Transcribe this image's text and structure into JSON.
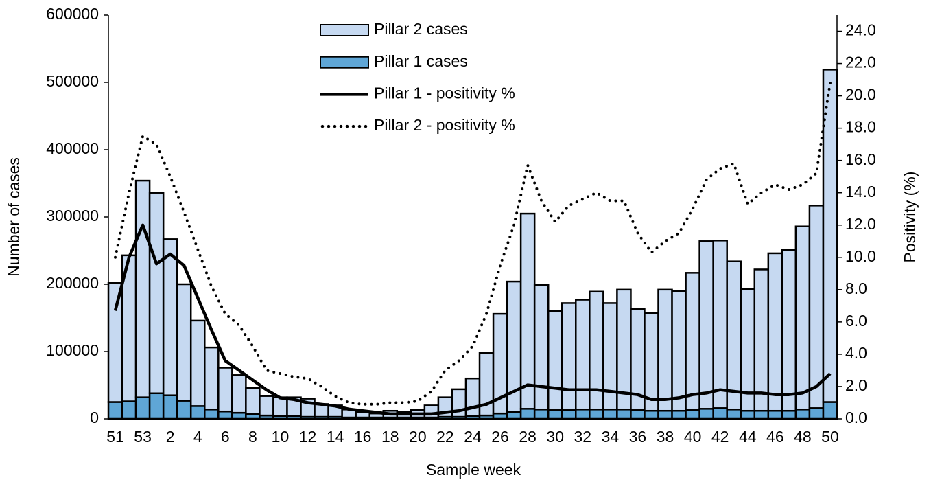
{
  "chart_data": {
    "type": "bar",
    "x_label": "Sample week",
    "y_label": "Number of cases",
    "y2_label": "Positivity (%)",
    "legend": "top",
    "categories": [
      "51",
      null,
      "53",
      null,
      "2",
      null,
      "4",
      null,
      "6",
      null,
      "8",
      null,
      "10",
      null,
      "12",
      null,
      "14",
      null,
      "16",
      null,
      "18",
      null,
      "20",
      null,
      "22",
      null,
      "24",
      null,
      "26",
      null,
      "28",
      null,
      "30",
      null,
      "32",
      null,
      "34",
      null,
      "36",
      null,
      "38",
      null,
      "40",
      null,
      "42",
      null,
      "44",
      null,
      "46",
      null,
      "48",
      null,
      "50"
    ],
    "ylim": [
      0,
      600000
    ],
    "yticks": [
      0,
      100000,
      200000,
      300000,
      400000,
      500000,
      600000
    ],
    "y2lim": [
      0,
      25
    ],
    "y2ticks": [
      {
        "value": 0,
        "label": "0.0"
      },
      {
        "value": 2,
        "label": "2.0"
      },
      {
        "value": 4,
        "label": "4.0"
      },
      {
        "value": 6,
        "label": "6.0"
      },
      {
        "value": 8,
        "label": "8.0"
      },
      {
        "value": 10,
        "label": "10.0"
      },
      {
        "value": 12,
        "label": "12.0"
      },
      {
        "value": 14,
        "label": "14.0"
      },
      {
        "value": 16,
        "label": "16.0"
      },
      {
        "value": 18,
        "label": "18.0"
      },
      {
        "value": 20,
        "label": "20.0"
      },
      {
        "value": 22,
        "label": "22.0"
      },
      {
        "value": 24,
        "label": "24.0"
      }
    ],
    "series": [
      {
        "name": "Pillar 2 cases",
        "type": "bar",
        "color": "#c6d9f1",
        "values": [
          177000,
          217000,
          322000,
          298000,
          232000,
          173000,
          127000,
          92000,
          65000,
          56000,
          39000,
          29000,
          28000,
          28000,
          27000,
          19000,
          17000,
          12000,
          8000,
          6000,
          10000,
          8000,
          11000,
          18000,
          29000,
          41000,
          56000,
          93000,
          148000,
          194000,
          290000,
          185000,
          147000,
          159000,
          163000,
          175000,
          158000,
          178000,
          150000,
          145000,
          180000,
          178000,
          204000,
          249000,
          249000,
          220000,
          181000,
          210000,
          234000,
          239000,
          272000,
          301000,
          494000
        ]
      },
      {
        "name": "Pillar 1 cases",
        "type": "bar",
        "color": "#5fa6d6",
        "values": [
          25000,
          26000,
          32000,
          38000,
          35000,
          27000,
          19000,
          14000,
          11000,
          9000,
          7000,
          5000,
          4000,
          4000,
          3000,
          3000,
          3000,
          2000,
          2000,
          2000,
          2000,
          2000,
          2000,
          2000,
          3000,
          3000,
          4000,
          5000,
          8000,
          10000,
          15000,
          14000,
          13000,
          13000,
          14000,
          14000,
          14000,
          14000,
          13000,
          12000,
          12000,
          12000,
          13000,
          15000,
          16000,
          14000,
          12000,
          12000,
          12000,
          12000,
          14000,
          16000,
          25000
        ]
      },
      {
        "name": "Pillar 1 - positivity %",
        "type": "line",
        "axis": "y2",
        "color": "#000000",
        "line_style": "solid",
        "values": [
          6.7,
          10.0,
          12.0,
          9.6,
          10.2,
          9.5,
          7.5,
          5.5,
          3.6,
          3.0,
          2.4,
          1.8,
          1.3,
          1.2,
          1.0,
          0.9,
          0.8,
          0.6,
          0.5,
          0.4,
          0.3,
          0.3,
          0.3,
          0.3,
          0.4,
          0.5,
          0.7,
          0.9,
          1.3,
          1.7,
          2.1,
          2.0,
          1.9,
          1.8,
          1.8,
          1.8,
          1.7,
          1.6,
          1.5,
          1.2,
          1.2,
          1.3,
          1.5,
          1.6,
          1.8,
          1.7,
          1.6,
          1.6,
          1.5,
          1.5,
          1.6,
          2.0,
          2.8
        ]
      },
      {
        "name": "Pillar 2 - positivity %",
        "type": "line",
        "axis": "y2",
        "color": "#000000",
        "line_style": "dotted",
        "values": [
          10.0,
          14.0,
          17.5,
          17.0,
          15.0,
          12.8,
          10.5,
          8.2,
          6.5,
          5.8,
          4.5,
          3.0,
          2.8,
          2.6,
          2.5,
          2.0,
          1.4,
          1.0,
          0.9,
          0.9,
          1.0,
          1.0,
          1.1,
          1.7,
          3.0,
          3.6,
          4.5,
          6.5,
          9.5,
          12.0,
          15.7,
          13.5,
          12.2,
          13.2,
          13.6,
          14.0,
          13.5,
          13.5,
          11.5,
          10.3,
          11.0,
          11.5,
          13.0,
          14.8,
          15.5,
          15.8,
          13.3,
          14.0,
          14.5,
          14.2,
          14.5,
          15.2,
          20.8
        ]
      }
    ]
  }
}
